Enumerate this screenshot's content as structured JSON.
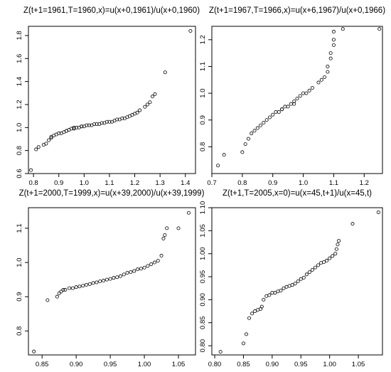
{
  "chart_data": [
    {
      "type": "scatter",
      "title": "Z(t+1=1961,T=1960,x)=u(x+0,1961)/u(x+0,1960)",
      "xlabel": "",
      "ylabel": "",
      "xlim": [
        0.78,
        1.44
      ],
      "ylim": [
        0.6,
        1.88
      ],
      "xticks": [
        0.8,
        0.9,
        1.0,
        1.1,
        1.2,
        1.3,
        1.4
      ],
      "xtick_labels": [
        "0.8",
        "0.9",
        "1.0",
        "1.1",
        "1.2",
        "1.3",
        "1.4"
      ],
      "yticks": [
        0.6,
        0.8,
        1.0,
        1.2,
        1.4,
        1.6,
        1.8
      ],
      "ytick_labels": [
        "0.6",
        "0.8",
        "1.0",
        "1.2",
        "1.4",
        "1.6",
        "1.8"
      ],
      "grid": false,
      "x": [
        0.79,
        0.81,
        0.82,
        0.84,
        0.85,
        0.86,
        0.87,
        0.87,
        0.88,
        0.89,
        0.9,
        0.91,
        0.92,
        0.93,
        0.93,
        0.94,
        0.95,
        0.96,
        0.96,
        0.97,
        0.98,
        0.99,
        0.99,
        1.0,
        1.01,
        1.02,
        1.03,
        1.04,
        1.05,
        1.06,
        1.07,
        1.08,
        1.09,
        1.1,
        1.11,
        1.12,
        1.13,
        1.14,
        1.15,
        1.16,
        1.17,
        1.18,
        1.19,
        1.2,
        1.21,
        1.22,
        1.24,
        1.25,
        1.26,
        1.27,
        1.28,
        1.32,
        1.42
      ],
      "y": [
        0.63,
        0.81,
        0.83,
        0.85,
        0.86,
        0.89,
        0.91,
        0.92,
        0.93,
        0.94,
        0.95,
        0.95,
        0.96,
        0.97,
        0.97,
        0.98,
        0.99,
        0.99,
        1.0,
        1.0,
        1.0,
        1.01,
        1.01,
        1.01,
        1.02,
        1.02,
        1.02,
        1.03,
        1.03,
        1.03,
        1.04,
        1.04,
        1.05,
        1.05,
        1.05,
        1.06,
        1.07,
        1.07,
        1.08,
        1.08,
        1.09,
        1.1,
        1.11,
        1.12,
        1.13,
        1.15,
        1.18,
        1.2,
        1.22,
        1.27,
        1.29,
        1.48,
        1.84
      ]
    },
    {
      "type": "scatter",
      "title": "Z(t+1=1967,T=1966,x)=u(x+6,1967)/u(x+0,1966)",
      "xlabel": "",
      "ylabel": "",
      "xlim": [
        0.7,
        1.26
      ],
      "ylim": [
        0.7,
        1.25
      ],
      "xticks": [
        0.7,
        0.8,
        0.9,
        1.0,
        1.1,
        1.2
      ],
      "xtick_labels": [
        "0.7",
        "0.8",
        "0.9",
        "1.0",
        "1.1",
        "1.2"
      ],
      "yticks": [
        0.8,
        0.9,
        1.0,
        1.1,
        1.2
      ],
      "ytick_labels": [
        "0.8",
        "0.9",
        "1.0",
        "1.1",
        "1.2"
      ],
      "grid": false,
      "x": [
        0.72,
        0.74,
        0.8,
        0.81,
        0.82,
        0.83,
        0.84,
        0.85,
        0.86,
        0.87,
        0.88,
        0.89,
        0.9,
        0.91,
        0.92,
        0.93,
        0.93,
        0.94,
        0.95,
        0.96,
        0.97,
        0.97,
        0.98,
        0.99,
        1.0,
        1.01,
        1.02,
        1.03,
        1.05,
        1.06,
        1.07,
        1.08,
        1.08,
        1.09,
        1.09,
        1.1,
        1.1,
        1.1,
        1.13,
        1.25
      ],
      "y": [
        0.73,
        0.77,
        0.78,
        0.81,
        0.83,
        0.85,
        0.86,
        0.87,
        0.88,
        0.89,
        0.9,
        0.91,
        0.92,
        0.93,
        0.93,
        0.94,
        0.94,
        0.95,
        0.95,
        0.96,
        0.96,
        0.97,
        0.98,
        0.99,
        1.0,
        1.0,
        1.01,
        1.02,
        1.04,
        1.05,
        1.06,
        1.08,
        1.1,
        1.13,
        1.15,
        1.18,
        1.2,
        1.23,
        1.24,
        1.24
      ]
    },
    {
      "type": "scatter",
      "title": "Z(t+1=2000,T=1999,x)=u(x+39,2000)/u(x+39,1999)",
      "xlabel": "",
      "ylabel": "",
      "xlim": [
        0.83,
        1.075
      ],
      "ylim": [
        0.73,
        1.16
      ],
      "xticks": [
        0.85,
        0.9,
        0.95,
        1.0,
        1.05
      ],
      "xtick_labels": [
        "0.85",
        "0.90",
        "0.95",
        "1.00",
        "1.05"
      ],
      "yticks": [
        0.8,
        0.9,
        1.0,
        1.1
      ],
      "ytick_labels": [
        "0.8",
        "0.9",
        "1.0",
        "1.1"
      ],
      "grid": false,
      "x": [
        0.838,
        0.858,
        0.872,
        0.875,
        0.878,
        0.881,
        0.884,
        0.89,
        0.895,
        0.9,
        0.905,
        0.91,
        0.915,
        0.92,
        0.925,
        0.93,
        0.935,
        0.94,
        0.945,
        0.95,
        0.955,
        0.96,
        0.965,
        0.97,
        0.975,
        0.98,
        0.985,
        0.99,
        0.995,
        1.0,
        1.005,
        1.01,
        1.015,
        1.02,
        1.025,
        1.028,
        1.03,
        1.033,
        1.05,
        1.065
      ],
      "y": [
        0.74,
        0.89,
        0.9,
        0.91,
        0.915,
        0.92,
        0.92,
        0.925,
        0.925,
        0.928,
        0.93,
        0.932,
        0.935,
        0.937,
        0.94,
        0.942,
        0.945,
        0.947,
        0.95,
        0.952,
        0.955,
        0.957,
        0.96,
        0.965,
        0.97,
        0.972,
        0.975,
        0.98,
        0.982,
        0.985,
        0.99,
        0.995,
        1.0,
        1.005,
        1.02,
        1.07,
        1.08,
        1.1,
        1.1,
        1.145
      ]
    },
    {
      "type": "scatter",
      "title": "Z(t+1,T=2005,x=0)=u(x=45,t+1)/u(x=45,t)",
      "xlabel": "",
      "ylabel": "",
      "xlim": [
        0.795,
        1.092
      ],
      "ylim": [
        0.78,
        1.1
      ],
      "xticks": [
        0.8,
        0.85,
        0.9,
        0.95,
        1.0,
        1.05
      ],
      "xtick_labels": [
        "0.80",
        "0.85",
        "0.90",
        "0.95",
        "1.00",
        "1.05"
      ],
      "yticks": [
        0.8,
        0.85,
        0.9,
        0.95,
        1.0,
        1.05,
        1.1
      ],
      "ytick_labels": [
        "0.80",
        "0.85",
        "0.90",
        "0.95",
        "1.00",
        "1.05",
        "1.10"
      ],
      "grid": false,
      "x": [
        0.81,
        0.85,
        0.855,
        0.86,
        0.865,
        0.87,
        0.875,
        0.88,
        0.882,
        0.885,
        0.89,
        0.895,
        0.9,
        0.905,
        0.91,
        0.915,
        0.92,
        0.925,
        0.93,
        0.935,
        0.94,
        0.945,
        0.95,
        0.955,
        0.96,
        0.965,
        0.97,
        0.975,
        0.98,
        0.985,
        0.99,
        0.995,
        1.0,
        1.005,
        1.01,
        1.012,
        1.014,
        1.016,
        1.04,
        1.085
      ],
      "y": [
        0.787,
        0.805,
        0.825,
        0.86,
        0.87,
        0.875,
        0.878,
        0.88,
        0.885,
        0.9,
        0.908,
        0.91,
        0.915,
        0.915,
        0.918,
        0.92,
        0.925,
        0.928,
        0.93,
        0.932,
        0.935,
        0.94,
        0.945,
        0.948,
        0.955,
        0.96,
        0.965,
        0.97,
        0.975,
        0.98,
        0.982,
        0.985,
        0.99,
        0.995,
        1.0,
        1.01,
        1.02,
        1.028,
        1.065,
        1.09
      ]
    }
  ]
}
